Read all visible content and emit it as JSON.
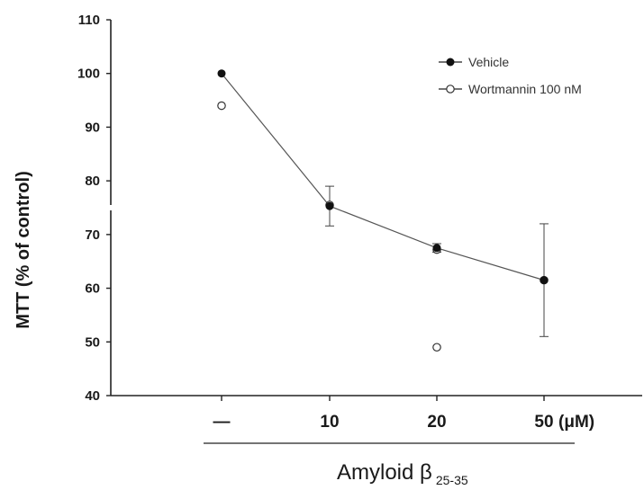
{
  "chart_data": {
    "type": "line",
    "categories": [
      "—",
      "10",
      "20",
      "50"
    ],
    "unit": "(μM)",
    "xlabel": "Amyloid β",
    "xlabel_subscript": "25-35",
    "ylabel": "MTT (% of control)",
    "ylim": [
      40,
      110
    ],
    "yticks": [
      40,
      50,
      60,
      70,
      80,
      90,
      100,
      110
    ],
    "grid": false,
    "legend_position": "top-right",
    "series": [
      {
        "name": "Vehicle",
        "marker": "filled-circle",
        "connected": true,
        "color": "#111111",
        "values": [
          100,
          75.3,
          67.5,
          61.5
        ],
        "errors": [
          0,
          3.7,
          0.8,
          10.5
        ]
      },
      {
        "name": "Wortmannin 100 nM",
        "marker": "open-circle",
        "connected": false,
        "color": "#111111",
        "values": [
          94,
          75.5,
          67.2,
          61.5
        ],
        "errors": [
          0,
          0,
          0,
          0
        ]
      }
    ],
    "extra_points": [
      {
        "series": "Wortmannin 100 nM",
        "category": "20",
        "value": 49
      }
    ]
  }
}
